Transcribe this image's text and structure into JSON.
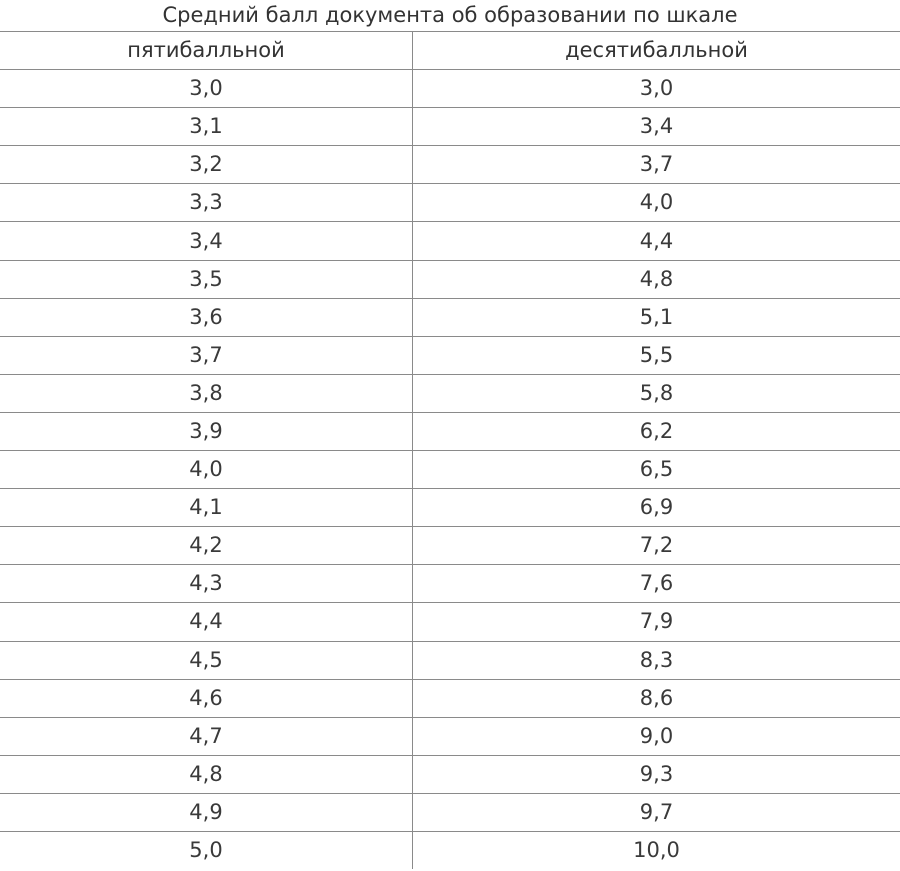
{
  "title": "Средний балл документа об образовании по шкале",
  "columns": [
    "пятибалльной",
    "десятибалльной"
  ],
  "rows": [
    [
      "3,0",
      "3,0"
    ],
    [
      "3,1",
      "3,4"
    ],
    [
      "3,2",
      "3,7"
    ],
    [
      "3,3",
      "4,0"
    ],
    [
      "3,4",
      "4,4"
    ],
    [
      "3,5",
      "4,8"
    ],
    [
      "3,6",
      "5,1"
    ],
    [
      "3,7",
      "5,5"
    ],
    [
      "3,8",
      "5,8"
    ],
    [
      "3,9",
      "6,2"
    ],
    [
      "4,0",
      "6,5"
    ],
    [
      "4,1",
      "6,9"
    ],
    [
      "4,2",
      "7,2"
    ],
    [
      "4,3",
      "7,6"
    ],
    [
      "4,4",
      "7,9"
    ],
    [
      "4,5",
      "8,3"
    ],
    [
      "4,6",
      "8,6"
    ],
    [
      "4,7",
      "9,0"
    ],
    [
      "4,8",
      "9,3"
    ],
    [
      "4,9",
      "9,7"
    ],
    [
      "5,0",
      "10,0"
    ]
  ]
}
